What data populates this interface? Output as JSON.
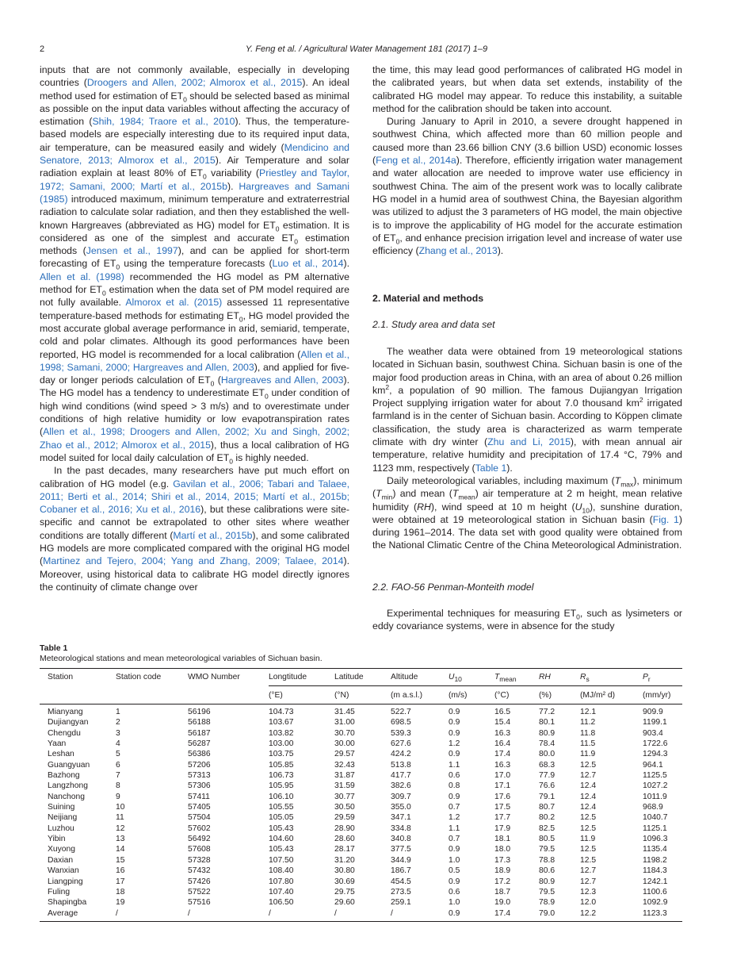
{
  "header": {
    "page_number": "2",
    "running_title": "Y. Feng et al. / Agricultural Water Management 181 (2017) 1–9"
  },
  "left_column": {
    "paragraphs": [
      [
        "inputs that are not commonly available, especially in developing countries (",
        {
          "c": "Droogers and Allen, 2002; Almorox et al., 2015"
        },
        "). An ideal method used for estimation of ET",
        {
          "s": "0"
        },
        " should be selected based as minimal as possible on the input data variables without affecting the accuracy of estimation (",
        {
          "c": "Shih, 1984; Traore et al., 2010"
        },
        "). Thus, the temperature-based models are especially interesting due to its required input data, air temperature, can be measured easily and widely (",
        {
          "c": "Mendicino and Senatore, 2013; Almorox et al., 2015"
        },
        "). Air Temperature and solar radiation explain at least 80% of ET",
        {
          "s": "0"
        },
        " variability (",
        {
          "c": "Priestley and Taylor, 1972; Samani, 2000; Martí et al., 2015b"
        },
        "). ",
        {
          "c": "Hargreaves and Samani (1985)"
        },
        " introduced maximum, minimum temperature and extraterrestrial radiation to calculate solar radiation, and then they established the well-known Hargreaves (abbreviated as HG) model for ET",
        {
          "s": "0"
        },
        " estimation. It is considered as one of the simplest and accurate ET",
        {
          "s": "0"
        },
        " estimation methods (",
        {
          "c": "Jensen et al., 1997"
        },
        "), and can be applied for short-term forecasting of ET",
        {
          "s": "0"
        },
        " using the temperature forecasts (",
        {
          "c": "Luo et al., 2014"
        },
        "). ",
        {
          "c": "Allen et al. (1998)"
        },
        " recommended the HG model as PM alternative method for ET",
        {
          "s": "0"
        },
        " estimation when the data set of PM model required are not fully available. ",
        {
          "c": "Almorox et al. (2015)"
        },
        " assessed 11 representative temperature-based methods for estimating ET",
        {
          "s": "0"
        },
        ", HG model provided the most accurate global average performance in arid, semiarid, temperate, cold and polar climates. Although its good performances have been reported, HG model is recommended for a local calibration (",
        {
          "c": "Allen et al., 1998; Samani, 2000; Hargreaves and Allen, 2003"
        },
        "), and applied for five-day or longer periods calculation of ET",
        {
          "s": "0"
        },
        " (",
        {
          "c": "Hargreaves and Allen, 2003"
        },
        "). The HG model has a tendency to underestimate ET",
        {
          "s": "0"
        },
        " under condition of high wind conditions (wind speed > 3 m/s) and to overestimate under conditions of high relative humidity or low evapotranspiration rates (",
        {
          "c": "Allen et al., 1998; Droogers and Allen, 2002; Xu and Singh, 2002; Zhao et al., 2012; Almorox et al., 2015"
        },
        "), thus a local calibration of HG model suited for local daily calculation of ET",
        {
          "s": "0"
        },
        " is highly needed."
      ],
      [
        "In the past decades, many researchers have put much effort on calibration of HG model (e.g. ",
        {
          "c": "Gavilan et al., 2006; Tabari and Talaee, 2011; Berti et al., 2014; Shiri et al., 2014, 2015; Martí et al., 2015b; Cobaner et al., 2016; Xu et al., 2016"
        },
        "), but these calibrations were site-specific and cannot be extrapolated to other sites where weather conditions are totally different (",
        {
          "c": "Martí et al., 2015b"
        },
        "), and some calibrated HG models are more complicated compared with the original HG model (",
        {
          "c": "Martinez and Tejero, 2004; Yang and Zhang, 2009; Talaee, 2014"
        },
        "). Moreover, using historical data to calibrate HG model directly ignores the continuity of climate change over"
      ]
    ]
  },
  "right_column": {
    "intro_paragraphs": [
      [
        "the time, this may lead good performances of calibrated HG model in the calibrated years, but when data set extends, instability of the calibrated HG model may appear. To reduce this instability, a suitable method for the calibration should be taken into account."
      ],
      [
        "During January to April in 2010, a severe drought happened in southwest China, which affected more than 60 million people and caused more than 23.66 billion CNY (3.6 billion USD) economic losses (",
        {
          "c": "Feng et al., 2014a"
        },
        "). Therefore, efficiently irrigation water management and water allocation are needed to improve water use efficiency in southwest China. The aim of the present work was to locally calibrate HG model in a humid area of southwest China, the Bayesian algorithm was utilized to adjust the 3 parameters of HG model, the main objective is to improve the applicability of HG model for the accurate estimation of ET",
        {
          "s": "0"
        },
        ", and enhance precision irrigation level and increase of water use efficiency (",
        {
          "c": "Zhang et al., 2013"
        },
        ")."
      ]
    ],
    "section_heading": "2. Material and methods",
    "subsection_1": "2.1. Study area and data set",
    "study_paragraphs": [
      [
        "The weather data were obtained from 19 meteorological stations located in Sichuan basin, southwest China. Sichuan basin is one of the major food production areas in China, with an area of about 0.26 million km",
        {
          "sup": "2"
        },
        ", a population of 90 million. The famous Dujiangyan Irrigation Project supplying irrigation water for about 7.0 thousand km",
        {
          "sup": "2"
        },
        " irrigated farmland is in the center of Sichuan basin. According to Köppen climate classification, the study area is characterized as warm temperate climate with dry winter (",
        {
          "c": "Zhu and Li, 2015"
        },
        "), with mean annual air temperature, relative humidity and precipitation of 17.4 °C, 79% and 1123 mm, respectively (",
        {
          "c": "Table 1"
        },
        ")."
      ],
      [
        "Daily meteorological variables, including maximum (",
        {
          "i": "T"
        },
        {
          "s": "max"
        },
        "), minimum (",
        {
          "i": "T"
        },
        {
          "s": "min"
        },
        ") and mean (",
        {
          "i": "T"
        },
        {
          "s": "mean"
        },
        ") air temperature at 2 m height, mean relative humidity (",
        {
          "i": "RH"
        },
        "), wind speed at 10 m height (",
        {
          "i": "U"
        },
        {
          "s": "10"
        },
        "), sunshine duration, were obtained at 19 meteorological station in Sichuan basin (",
        {
          "c": "Fig. 1"
        },
        ") during 1961–2014. The data set with good quality were obtained from the National Climatic Centre of the China Meteorological Administration."
      ]
    ],
    "subsection_2": "2.2. FAO-56 Penman-Monteith model",
    "pm_paragraphs": [
      [
        "Experimental techniques for measuring ET",
        {
          "s": "0"
        },
        ", such as lysimeters or eddy covariance systems, were in absence for the study"
      ]
    ]
  },
  "table": {
    "label": "Table 1",
    "caption": "Meteorological stations and mean meteorological variables of Sichuan basin.",
    "headers": [
      [
        {
          "t": "Station"
        }
      ],
      [
        {
          "t": "Station code"
        }
      ],
      [
        {
          "t": "WMO Number"
        }
      ],
      [
        {
          "t": "Longtitude"
        }
      ],
      [
        {
          "t": "Latitude"
        }
      ],
      [
        {
          "t": "Altitude"
        }
      ],
      [
        {
          "i": "U"
        },
        {
          "s": "10"
        }
      ],
      [
        {
          "i": "T"
        },
        {
          "s": "mean"
        }
      ],
      [
        {
          "i": "RH"
        }
      ],
      [
        {
          "i": "R"
        },
        {
          "s": "s"
        }
      ],
      [
        {
          "i": "P"
        },
        {
          "s": "r"
        }
      ]
    ],
    "units": [
      "",
      "",
      "",
      "(°E)",
      "(°N)",
      "(m a.s.l.)",
      "(m/s)",
      "(°C)",
      "(%)",
      "(MJ/m² d)",
      "(mm/yr)"
    ],
    "rows": [
      [
        "Mianyang",
        "1",
        "56196",
        "104.73",
        "31.45",
        "522.7",
        "0.9",
        "16.5",
        "77.2",
        "12.1",
        "909.9"
      ],
      [
        "Dujiangyan",
        "2",
        "56188",
        "103.67",
        "31.00",
        "698.5",
        "0.9",
        "15.4",
        "80.1",
        "11.2",
        "1199.1"
      ],
      [
        "Chengdu",
        "3",
        "56187",
        "103.82",
        "30.70",
        "539.3",
        "0.9",
        "16.3",
        "80.9",
        "11.8",
        "903.4"
      ],
      [
        "Yaan",
        "4",
        "56287",
        "103.00",
        "30.00",
        "627.6",
        "1.2",
        "16.4",
        "78.4",
        "11.5",
        "1722.6"
      ],
      [
        "Leshan",
        "5",
        "56386",
        "103.75",
        "29.57",
        "424.2",
        "0.9",
        "17.4",
        "80.0",
        "11.9",
        "1294.3"
      ],
      [
        "Guangyuan",
        "6",
        "57206",
        "105.85",
        "32.43",
        "513.8",
        "1.1",
        "16.3",
        "68.3",
        "12.5",
        "964.1"
      ],
      [
        "Bazhong",
        "7",
        "57313",
        "106.73",
        "31.87",
        "417.7",
        "0.6",
        "17.0",
        "77.9",
        "12.7",
        "1125.5"
      ],
      [
        "Langzhong",
        "8",
        "57306",
        "105.95",
        "31.59",
        "382.6",
        "0.8",
        "17.1",
        "76.6",
        "12.4",
        "1027.2"
      ],
      [
        "Nanchong",
        "9",
        "57411",
        "106.10",
        "30.77",
        "309.7",
        "0.9",
        "17.6",
        "79.1",
        "12.4",
        "1011.9"
      ],
      [
        "Suining",
        "10",
        "57405",
        "105.55",
        "30.50",
        "355.0",
        "0.7",
        "17.5",
        "80.7",
        "12.4",
        "968.9"
      ],
      [
        "Neijiang",
        "11",
        "57504",
        "105.05",
        "29.59",
        "347.1",
        "1.2",
        "17.7",
        "80.2",
        "12.5",
        "1040.7"
      ],
      [
        "Luzhou",
        "12",
        "57602",
        "105.43",
        "28.90",
        "334.8",
        "1.1",
        "17.9",
        "82.5",
        "12.5",
        "1125.1"
      ],
      [
        "Yibin",
        "13",
        "56492",
        "104.60",
        "28.60",
        "340.8",
        "0.7",
        "18.1",
        "80.5",
        "11.9",
        "1096.3"
      ],
      [
        "Xuyong",
        "14",
        "57608",
        "105.43",
        "28.17",
        "377.5",
        "0.9",
        "18.0",
        "79.5",
        "12.5",
        "1135.4"
      ],
      [
        "Daxian",
        "15",
        "57328",
        "107.50",
        "31.20",
        "344.9",
        "1.0",
        "17.3",
        "78.8",
        "12.5",
        "1198.2"
      ],
      [
        "Wanxian",
        "16",
        "57432",
        "108.40",
        "30.80",
        "186.7",
        "0.5",
        "18.9",
        "80.6",
        "12.7",
        "1184.3"
      ],
      [
        "Liangping",
        "17",
        "57426",
        "107.80",
        "30.69",
        "454.5",
        "0.9",
        "17.2",
        "80.9",
        "12.7",
        "1242.1"
      ],
      [
        "Fuling",
        "18",
        "57522",
        "107.40",
        "29.75",
        "273.5",
        "0.6",
        "18.7",
        "79.5",
        "12.3",
        "1100.6"
      ],
      [
        "Shapingba",
        "19",
        "57516",
        "106.50",
        "29.60",
        "259.1",
        "1.0",
        "19.0",
        "78.9",
        "12.0",
        "1092.9"
      ],
      [
        "Average",
        "/",
        "/",
        "/",
        "/",
        "/",
        "0.9",
        "17.4",
        "79.0",
        "12.2",
        "1123.3"
      ]
    ]
  },
  "colors": {
    "citation_link": "#2a6ebb",
    "text": "#231f20"
  }
}
